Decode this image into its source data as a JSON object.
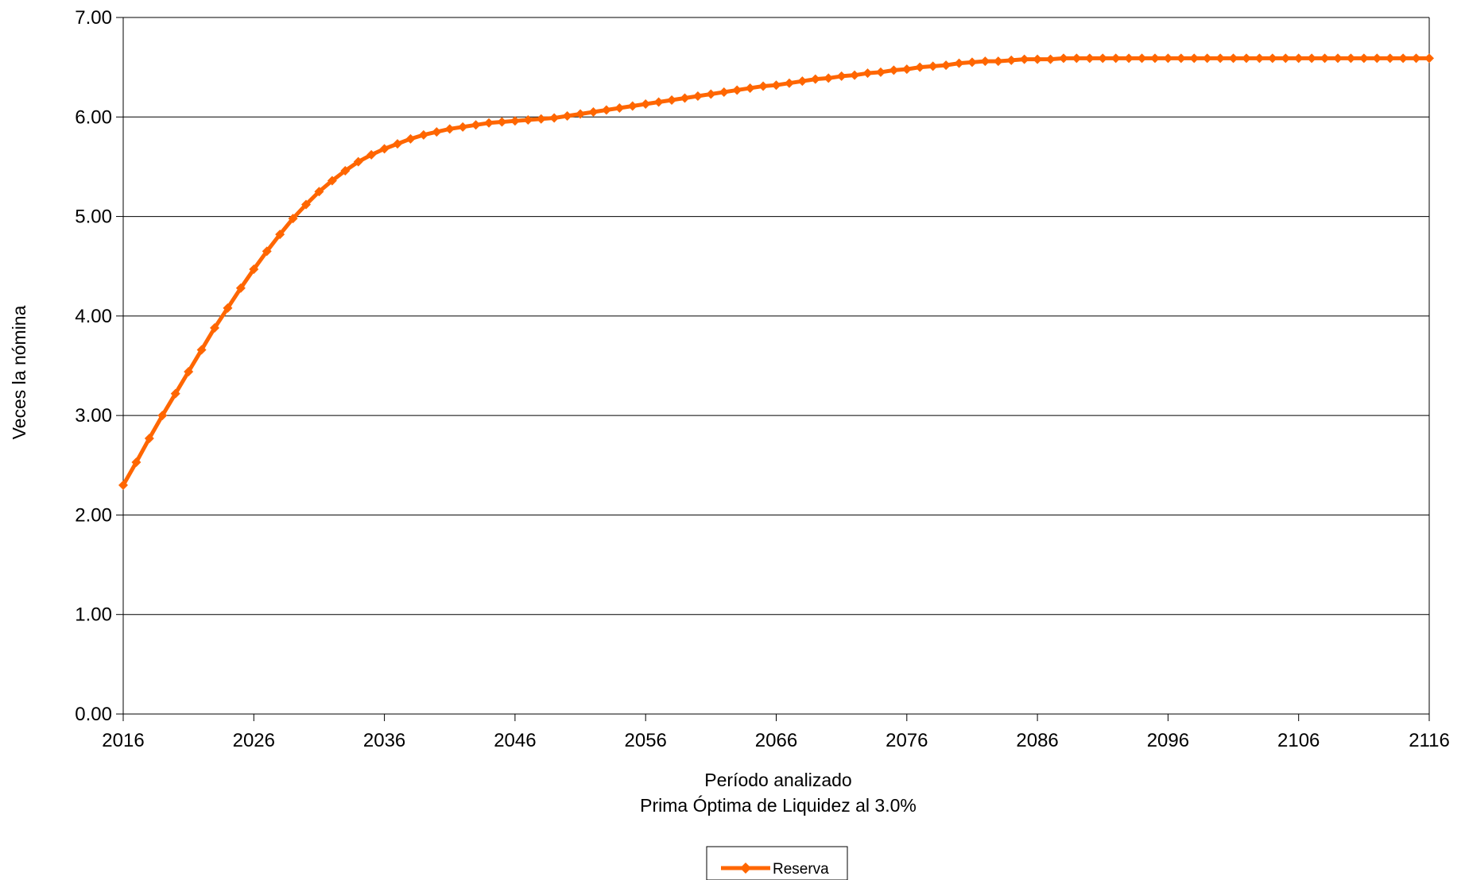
{
  "chart_data": {
    "type": "line",
    "xlabel": "Período analizado",
    "subtitle": "Prima Óptima de Liquidez al 3.0%",
    "ylabel": "Veces la nómina",
    "xlim": [
      2016,
      2116
    ],
    "ylim": [
      0,
      7
    ],
    "x_ticks": [
      "2016",
      "2026",
      "2036",
      "2046",
      "2056",
      "2066",
      "2076",
      "2086",
      "2096",
      "2106",
      "2116"
    ],
    "y_ticks": [
      "0.00",
      "1.00",
      "2.00",
      "3.00",
      "4.00",
      "5.00",
      "6.00",
      "7.00"
    ],
    "grid": "horizontal",
    "legend_position": "bottom-center",
    "series": [
      {
        "name": "Reserva",
        "color": "#FF6600",
        "marker": "diamond",
        "x": [
          2016,
          2017,
          2018,
          2019,
          2020,
          2021,
          2022,
          2023,
          2024,
          2025,
          2026,
          2027,
          2028,
          2029,
          2030,
          2031,
          2032,
          2033,
          2034,
          2035,
          2036,
          2037,
          2038,
          2039,
          2040,
          2041,
          2042,
          2043,
          2044,
          2045,
          2046,
          2047,
          2048,
          2049,
          2050,
          2051,
          2052,
          2053,
          2054,
          2055,
          2056,
          2057,
          2058,
          2059,
          2060,
          2061,
          2062,
          2063,
          2064,
          2065,
          2066,
          2067,
          2068,
          2069,
          2070,
          2071,
          2072,
          2073,
          2074,
          2075,
          2076,
          2077,
          2078,
          2079,
          2080,
          2081,
          2082,
          2083,
          2084,
          2085,
          2086,
          2087,
          2088,
          2089,
          2090,
          2091,
          2092,
          2093,
          2094,
          2095,
          2096,
          2097,
          2098,
          2099,
          2100,
          2101,
          2102,
          2103,
          2104,
          2105,
          2106,
          2107,
          2108,
          2109,
          2110,
          2111,
          2112,
          2113,
          2114,
          2115,
          2116
        ],
        "values": [
          2.3,
          2.53,
          2.77,
          3.0,
          3.22,
          3.44,
          3.66,
          3.88,
          4.08,
          4.28,
          4.47,
          4.65,
          4.82,
          4.98,
          5.12,
          5.25,
          5.36,
          5.46,
          5.55,
          5.62,
          5.68,
          5.73,
          5.78,
          5.82,
          5.85,
          5.88,
          5.9,
          5.92,
          5.94,
          5.95,
          5.96,
          5.97,
          5.98,
          5.99,
          6.01,
          6.03,
          6.05,
          6.07,
          6.09,
          6.11,
          6.13,
          6.15,
          6.17,
          6.19,
          6.21,
          6.23,
          6.25,
          6.27,
          6.29,
          6.31,
          6.32,
          6.34,
          6.36,
          6.38,
          6.39,
          6.41,
          6.42,
          6.44,
          6.45,
          6.47,
          6.48,
          6.5,
          6.51,
          6.52,
          6.54,
          6.55,
          6.56,
          6.56,
          6.57,
          6.58,
          6.58,
          6.58,
          6.59,
          6.59,
          6.59,
          6.59,
          6.59,
          6.59,
          6.59,
          6.59,
          6.59,
          6.59,
          6.59,
          6.59,
          6.59,
          6.59,
          6.59,
          6.59,
          6.59,
          6.59,
          6.59,
          6.59,
          6.59,
          6.59,
          6.59,
          6.59,
          6.59,
          6.59,
          6.59,
          6.59,
          6.59
        ]
      }
    ]
  }
}
